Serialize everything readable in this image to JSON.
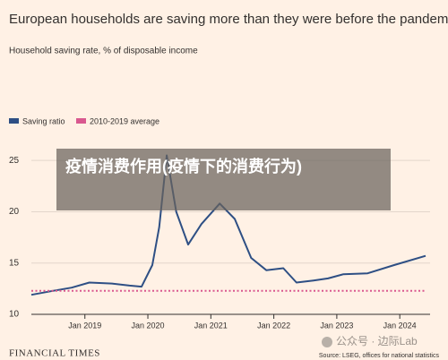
{
  "chart_data": {
    "type": "line",
    "title": "European households are saving more than they were before the pandemic",
    "subtitle": "Household saving rate, % of disposable income",
    "source": "Source: LSEG, offices for national statistics",
    "publisher": "FINANCIAL TIMES",
    "xlim": [
      2018.15,
      2024.41
    ],
    "xticks": [
      {
        "value": 2019,
        "label": "Jan 2019"
      },
      {
        "value": 2020,
        "label": "Jan 2020"
      },
      {
        "value": 2021,
        "label": "Jan 2021"
      },
      {
        "value": 2022,
        "label": "Jan 2022"
      },
      {
        "value": 2023,
        "label": "Jan 2023"
      },
      {
        "value": 2024,
        "label": "Jan 2024"
      }
    ],
    "ylim": [
      10,
      26.5
    ],
    "yticks": [
      10,
      15,
      20,
      25
    ],
    "grid": true,
    "series": [
      {
        "name": "Saving ratio",
        "color": "#2e4f84",
        "style": "solid",
        "x": [
          2018.15,
          2018.5,
          2018.79,
          2019.07,
          2019.43,
          2019.71,
          2019.9,
          2020.07,
          2020.18,
          2020.3,
          2020.45,
          2020.64,
          2020.85,
          2021.14,
          2021.38,
          2021.64,
          2021.88,
          2022.15,
          2022.36,
          2022.63,
          2022.86,
          2023.1,
          2023.49,
          2023.91,
          2024.41
        ],
        "values": [
          11.9,
          12.3,
          12.6,
          13.1,
          13.0,
          12.8,
          12.7,
          14.8,
          18.5,
          25.5,
          20,
          16.8,
          18.8,
          20.8,
          19.3,
          15.5,
          14.3,
          14.5,
          13.1,
          13.3,
          13.5,
          13.9,
          14.0,
          14.8,
          15.7
        ]
      },
      {
        "name": "2010-2019 average",
        "color": "#d9588f",
        "style": "dotted",
        "x": [
          2018.15,
          2024.41
        ],
        "values": [
          12.3,
          12.3
        ]
      }
    ]
  },
  "overlay": {
    "text": "疫情消费作用(疫情下的消费行为)"
  },
  "watermark": {
    "text": "公众号 · 边际Lab"
  }
}
